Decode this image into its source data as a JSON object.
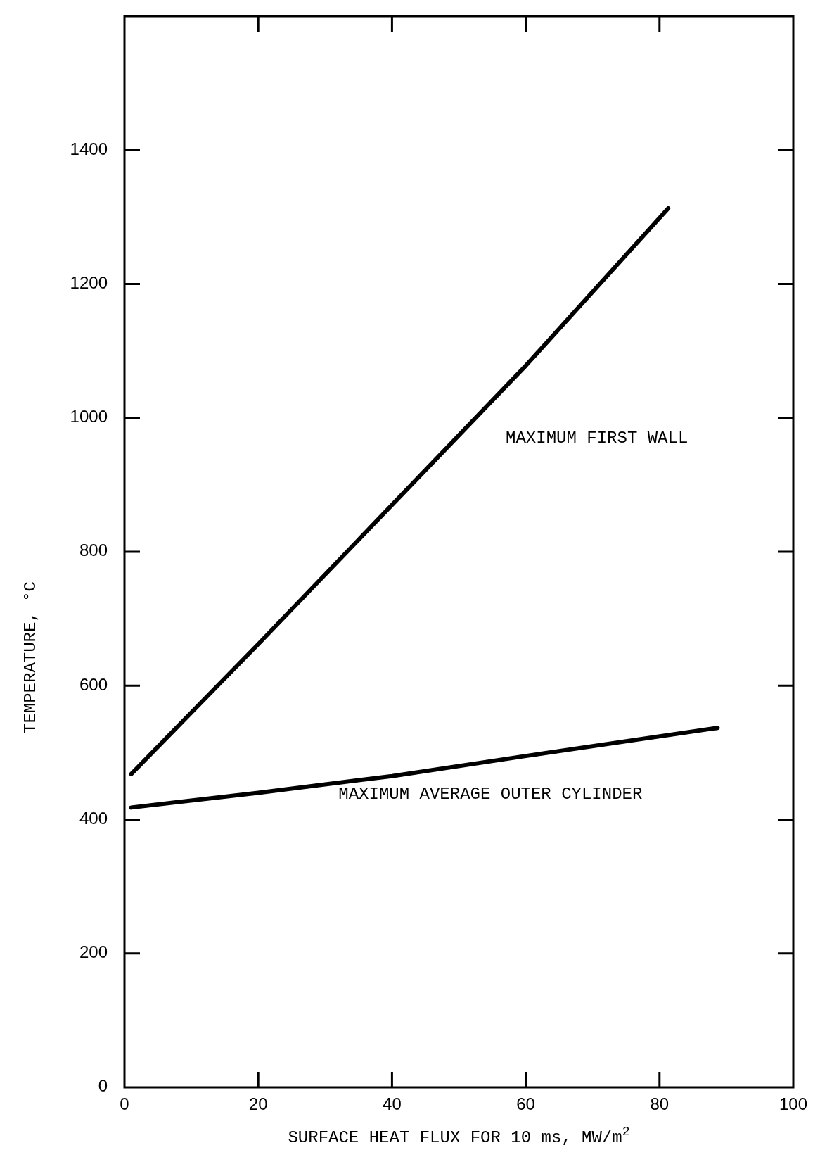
{
  "chart_data": {
    "type": "line",
    "xlabel": "SURFACE HEAT FLUX FOR 10 ms, MW/m$^{2}$",
    "ylabel": "TEMPERATURE, °C",
    "xlim": [
      0,
      100
    ],
    "xticks": [
      0,
      20,
      40,
      60,
      80,
      100
    ],
    "ylim": [
      0,
      1600
    ],
    "yticks": [
      0,
      200,
      400,
      600,
      800,
      1000,
      1200,
      1400
    ],
    "grid": false,
    "marker": "none",
    "line_style": "solid",
    "series": [
      {
        "name": "MAXIMUM FIRST WALL",
        "color": "#000000",
        "x": [
          1,
          20,
          40,
          60,
          81.3
        ],
        "values": [
          468,
          662,
          870,
          1078,
          1313
        ]
      },
      {
        "name": "MAXIMUM AVERAGE OUTER CYLINDER",
        "color": "#000000",
        "x": [
          1,
          20,
          40,
          60,
          88.7
        ],
        "values": [
          418,
          440,
          465,
          495,
          537
        ]
      }
    ]
  }
}
